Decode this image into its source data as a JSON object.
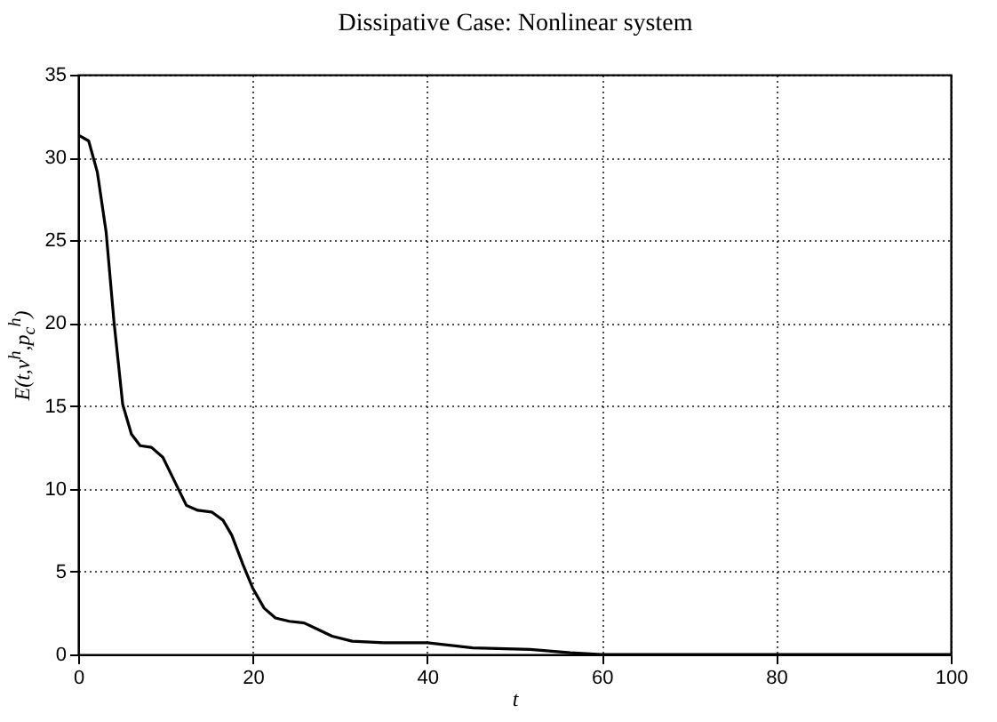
{
  "chart_data": {
    "type": "line",
    "title": "Dissipative Case: Nonlinear system",
    "xlabel": "t",
    "ylabel": "E(t,v$^{h}$,p$_{c}$$^{h}$)",
    "xlim": [
      0,
      100
    ],
    "ylim": [
      0,
      35
    ],
    "xticks": [
      0,
      20,
      40,
      60,
      80,
      100
    ],
    "yticks": [
      0,
      5,
      10,
      15,
      20,
      25,
      30,
      35
    ],
    "grid": true,
    "series": [
      {
        "color": "#000000",
        "x": [
          0,
          0.2,
          1.2,
          2.2,
          3.2,
          4.1,
          5.1,
          6.1,
          7.1,
          8.4,
          9.7,
          11,
          12.4,
          13.7,
          15.3,
          16.6,
          17.6,
          18.9,
          20,
          21.3,
          22.6,
          24.2,
          25.9,
          27.5,
          29.1,
          31.4,
          35,
          40,
          45.2,
          51.8,
          56.4,
          60,
          72.7,
          100
        ],
        "values": [
          31.3,
          31.3,
          31,
          29.1,
          25.5,
          20.1,
          15.1,
          13.3,
          12.6,
          12.5,
          11.9,
          10.5,
          9,
          8.7,
          8.6,
          8.1,
          7.2,
          5.4,
          4,
          2.8,
          2.2,
          2,
          1.9,
          1.5,
          1.1,
          0.8,
          0.7,
          0.7,
          0.4,
          0.3,
          0.1,
          0,
          0,
          0
        ]
      }
    ]
  }
}
